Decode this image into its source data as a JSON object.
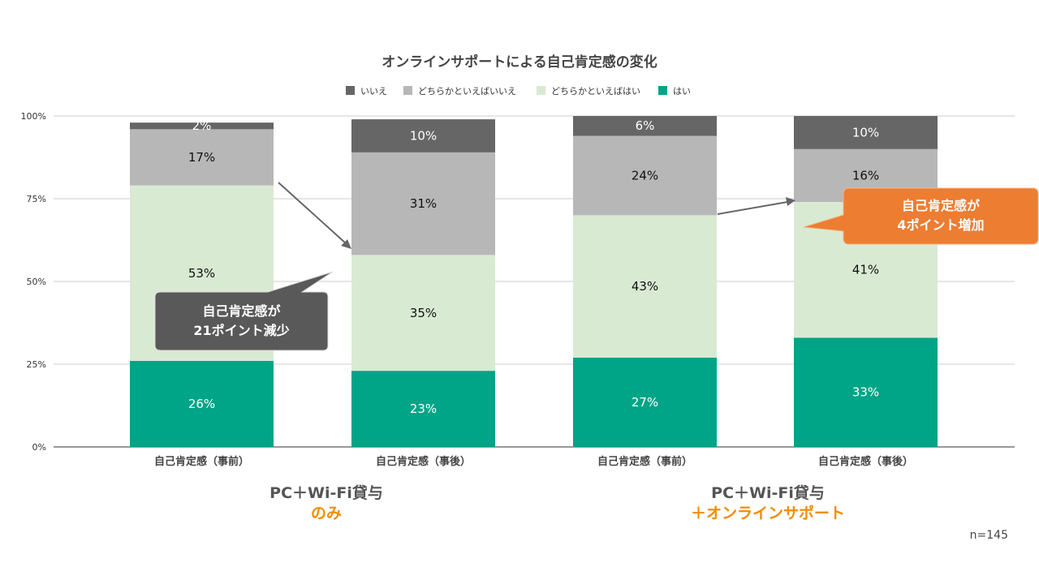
{
  "chart_data": {
    "type": "bar",
    "stacked": true,
    "title": "オンラインサポートによる自己肯定感の変化",
    "categories": [
      "自己肯定感（事前）",
      "自己肯定感（事後）",
      "自己肯定感（事前）",
      "自己肯定感（事後）"
    ],
    "series": [
      {
        "name": "はい",
        "color": "#00a487",
        "label_color": "#ffffff",
        "values": [
          26,
          23,
          27,
          33
        ]
      },
      {
        "name": "どちらかといえばはい",
        "color": "#d9ead3",
        "label_color": "#111111",
        "values": [
          53,
          35,
          43,
          41
        ]
      },
      {
        "name": "どちらかといえばいいえ",
        "color": "#b7b7b7",
        "label_color": "#111111",
        "values": [
          17,
          31,
          24,
          16
        ]
      },
      {
        "name": "いいえ",
        "color": "#666666",
        "label_color": "#ffffff",
        "values": [
          2,
          10,
          6,
          10
        ]
      }
    ],
    "legend_order": [
      3,
      2,
      1,
      0
    ],
    "legend_position": "top",
    "ylim": [
      0,
      100
    ],
    "yticks": [
      "0%",
      "25%",
      "50%",
      "75%",
      "100%"
    ],
    "grid": true
  },
  "groups": [
    {
      "line1": "PC＋Wi-Fi貸与",
      "line2": "のみ"
    },
    {
      "line1": "PC＋Wi-Fi貸与",
      "line2": "＋オンラインサポート"
    }
  ],
  "callouts": [
    {
      "line1": "自己肯定感が",
      "line2": "21ポイント減少",
      "color": "#595959"
    },
    {
      "line1": "自己肯定感が",
      "line2": "4ポイント増加",
      "color": "#ed7d31"
    }
  ],
  "n_label": "n=145"
}
